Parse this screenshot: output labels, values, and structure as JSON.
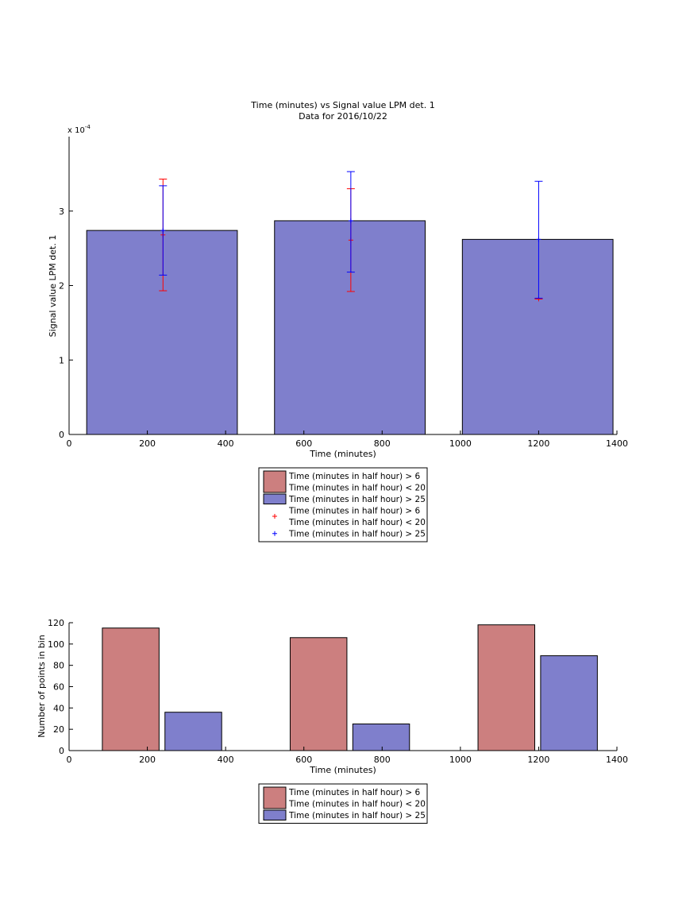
{
  "chart_data": [
    {
      "type": "bar",
      "title": "Time (minutes) vs Signal value LPM det. 1",
      "subtitle": "Data for 2016/10/22",
      "xlabel": "Time (minutes)",
      "ylabel": "Signal value LPM det. 1",
      "y_exponent": "x 10",
      "y_exponent_power": "-4",
      "xlim": [
        0,
        1400
      ],
      "ylim": [
        0,
        4
      ],
      "x_ticks": [
        "0",
        "200",
        "400",
        "600",
        "800",
        "1000",
        "1200",
        "1400"
      ],
      "y_ticks": [
        "0",
        "1",
        "2",
        "3"
      ],
      "bars": [
        {
          "x_start": 45,
          "x_end": 430,
          "value": 2.74
        },
        {
          "x_start": 525,
          "x_end": 910,
          "value": 2.87
        },
        {
          "x_start": 1005,
          "x_end": 1390,
          "value": 2.62
        }
      ],
      "series": [
        {
          "name": "Time (minutes in half hour) > 6\nTime (minutes in half hour) < 20",
          "color": "#CC7F7F",
          "marker_color": "#FF0000",
          "errorbars": [
            {
              "x": 240,
              "y": 2.68,
              "low": 1.93,
              "high": 3.43
            },
            {
              "x": 720,
              "y": 2.61,
              "low": 1.92,
              "high": 3.3
            },
            {
              "x": 1200,
              "y": 1.82,
              "low": 1.82,
              "high": 1.82
            }
          ]
        },
        {
          "name": "Time (minutes in half hour) > 25",
          "color": "#7F7FCC",
          "marker_color": "#0000FF",
          "errorbars": [
            {
              "x": 240,
              "y": 2.74,
              "low": 2.14,
              "high": 3.34
            },
            {
              "x": 720,
              "y": 2.87,
              "low": 2.18,
              "high": 3.53
            },
            {
              "x": 1200,
              "y": 2.62,
              "low": 1.83,
              "high": 3.4
            }
          ]
        }
      ],
      "legend": {
        "position": "below",
        "entries": [
          {
            "label_line1": "Time (minutes in half hour) > 6",
            "label_line2": "Time (minutes in half hour) < 20",
            "kind": "patch",
            "color": "#CC7F7F"
          },
          {
            "label_line1": "Time (minutes in half hour) > 25",
            "kind": "patch",
            "color": "#7F7FCC"
          },
          {
            "label_line1": "Time (minutes in half hour) > 6",
            "label_line2": "Time (minutes in half hour) < 20",
            "kind": "marker",
            "color": "#FF0000"
          },
          {
            "label_line1": "Time (minutes in half hour) > 25",
            "kind": "marker",
            "color": "#0000FF"
          }
        ]
      }
    },
    {
      "type": "bar",
      "xlabel": "Time (minutes)",
      "ylabel": "Number of points in bin",
      "xlim": [
        0,
        1400
      ],
      "ylim": [
        0,
        120
      ],
      "x_ticks": [
        "0",
        "200",
        "400",
        "600",
        "800",
        "1000",
        "1200",
        "1400"
      ],
      "y_ticks": [
        "0",
        "20",
        "40",
        "60",
        "80",
        "100",
        "120"
      ],
      "series": [
        {
          "name": "Time (minutes in half hour) > 6\nTime (minutes in half hour) < 20",
          "color": "#CC7F7F",
          "bars": [
            {
              "x_start": 85,
              "x_end": 230,
              "value": 115
            },
            {
              "x_start": 565,
              "x_end": 710,
              "value": 106
            },
            {
              "x_start": 1045,
              "x_end": 1190,
              "value": 118
            }
          ]
        },
        {
          "name": "Time (minutes in half hour) > 25",
          "color": "#7F7FCC",
          "bars": [
            {
              "x_start": 245,
              "x_end": 390,
              "value": 36
            },
            {
              "x_start": 725,
              "x_end": 870,
              "value": 25
            },
            {
              "x_start": 1205,
              "x_end": 1350,
              "value": 89
            }
          ]
        }
      ],
      "legend": {
        "position": "below",
        "entries": [
          {
            "label_line1": "Time (minutes in half hour) > 6",
            "label_line2": "Time (minutes in half hour) < 20",
            "kind": "patch",
            "color": "#CC7F7F"
          },
          {
            "label_line1": "Time (minutes in half hour) > 25",
            "kind": "patch",
            "color": "#7F7FCC"
          }
        ]
      }
    }
  ]
}
